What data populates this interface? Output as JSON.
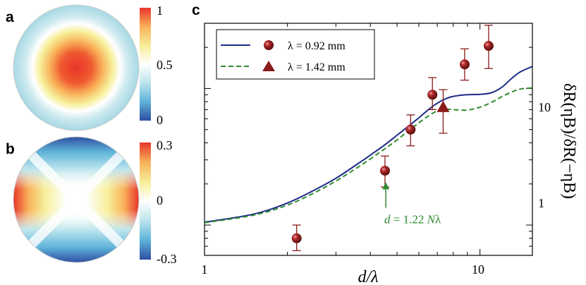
{
  "colors": {
    "theory_solid": "#1c2a86",
    "theory_dashed": "#2e8b2e",
    "data_marker": "#8b1a1a",
    "errorbar": "#8b1a1a",
    "colormap": [
      "#2f4fa3",
      "#5fb4d9",
      "#bfe6ee",
      "#ffffff",
      "#f7ef9a",
      "#f8b25a",
      "#e8352a"
    ]
  },
  "panel_a": {
    "label": "a",
    "colorbar_ticks": [
      "1",
      "0.5",
      "0"
    ],
    "colorbar_range": [
      0,
      1
    ]
  },
  "panel_b": {
    "label": "b",
    "colorbar_ticks": [
      "0.3",
      "0",
      "-0.3"
    ],
    "colorbar_range": [
      -0.3,
      0.3
    ]
  },
  "chart_data": {
    "type": "scatter",
    "panel_label": "c",
    "xlabel": "d/λ",
    "ylabel": "δR(ηB)/δR(−ηB)",
    "xscale": "log",
    "yscale": "log",
    "xlim": [
      1,
      15.5
    ],
    "ylim": [
      0.6,
      30
    ],
    "xticks": [
      1,
      10
    ],
    "xtick_labels": [
      "1",
      "10"
    ],
    "yticks": [
      1,
      10
    ],
    "ytick_labels": [
      "1",
      "10"
    ],
    "legend_position": "top-left",
    "series": [
      {
        "name": "λ = 0.92 mm",
        "marker": "sphere",
        "x": [
          2.16,
          4.52,
          5.6,
          6.72,
          8.8,
          10.75
        ],
        "y": [
          0.8,
          2.5,
          5.0,
          9.0,
          15.0,
          20.5
        ],
        "y_low": [
          0.65,
          1.9,
          3.8,
          7.0,
          11.5,
          14.0
        ],
        "y_high": [
          1.0,
          3.2,
          6.4,
          12.0,
          19.5,
          29.0
        ]
      },
      {
        "name": "λ = 1.42 mm",
        "marker": "triangle",
        "x": [
          7.35
        ],
        "y": [
          7.3
        ],
        "y_low": [
          4.7
        ],
        "y_high": [
          9.8
        ]
      },
      {
        "style": "solid",
        "x": [
          1.0,
          1.5,
          2.0,
          2.5,
          3.0,
          3.5,
          4.0,
          4.5,
          5.0,
          5.5,
          6.0,
          6.5,
          7.0,
          7.5,
          8.0,
          9.0,
          10.0,
          11.0,
          12.0,
          13.0,
          14.0,
          15.5
        ],
        "y": [
          1.05,
          1.2,
          1.45,
          1.8,
          2.2,
          2.7,
          3.25,
          3.85,
          4.55,
          5.3,
          6.1,
          7.0,
          7.8,
          8.4,
          8.75,
          9.0,
          9.05,
          9.3,
          10.2,
          11.8,
          13.2,
          14.5
        ]
      },
      {
        "style": "dashed",
        "x": [
          1.0,
          1.5,
          2.0,
          2.5,
          3.0,
          3.5,
          4.0,
          4.5,
          5.0,
          5.5,
          6.0,
          6.5,
          7.0,
          7.5,
          8.0,
          9.0,
          10.0,
          11.0,
          12.0,
          13.0,
          14.0,
          15.5
        ],
        "y": [
          1.04,
          1.18,
          1.4,
          1.72,
          2.1,
          2.55,
          3.05,
          3.6,
          4.2,
          4.9,
          5.6,
          6.3,
          6.85,
          7.05,
          7.0,
          6.95,
          7.3,
          7.9,
          8.7,
          9.4,
          9.9,
          10.1
        ]
      }
    ],
    "annotation": {
      "text_d": "d",
      "text_eq": " = 1.22 ",
      "text_n": "N",
      "text_lambda": "λ",
      "x": 4.55,
      "y": 1.7
    }
  }
}
